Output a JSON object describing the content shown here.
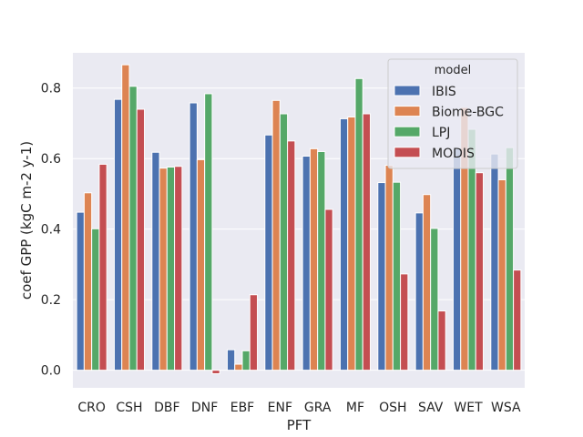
{
  "chart_data": {
    "type": "bar",
    "xlabel": "PFT",
    "ylabel": "coef GPP (kgC m-2 y-1)",
    "ylim": [
      -0.05,
      0.9
    ],
    "yticks": [
      0.0,
      0.2,
      0.4,
      0.6,
      0.8
    ],
    "ytick_labels": [
      "0.0",
      "0.2",
      "0.4",
      "0.6",
      "0.8"
    ],
    "grid": true,
    "categories": [
      "CRO",
      "CSH",
      "DBF",
      "DNF",
      "EBF",
      "ENF",
      "GRA",
      "MF",
      "OSH",
      "SAV",
      "WET",
      "WSA"
    ],
    "legend": {
      "title": "model",
      "placement": "top-right"
    },
    "series": [
      {
        "name": "IBIS",
        "color": "#4c72b0",
        "values": [
          0.448,
          0.768,
          0.618,
          0.758,
          0.058,
          0.667,
          0.607,
          0.713,
          0.532,
          0.446,
          0.628,
          0.613
        ]
      },
      {
        "name": "Biome-BGC",
        "color": "#dd8452",
        "values": [
          0.503,
          0.866,
          0.573,
          0.597,
          0.017,
          0.765,
          0.628,
          0.718,
          0.581,
          0.498,
          0.745,
          0.54
        ]
      },
      {
        "name": "LPJ",
        "color": "#55a868",
        "values": [
          0.401,
          0.805,
          0.576,
          0.784,
          0.055,
          0.727,
          0.62,
          0.827,
          0.533,
          0.402,
          0.683,
          0.631
        ]
      },
      {
        "name": "MODIS",
        "color": "#c44e52",
        "values": [
          0.584,
          0.74,
          0.578,
          -0.01,
          0.214,
          0.65,
          0.456,
          0.727,
          0.273,
          0.168,
          0.56,
          0.284
        ]
      }
    ]
  }
}
